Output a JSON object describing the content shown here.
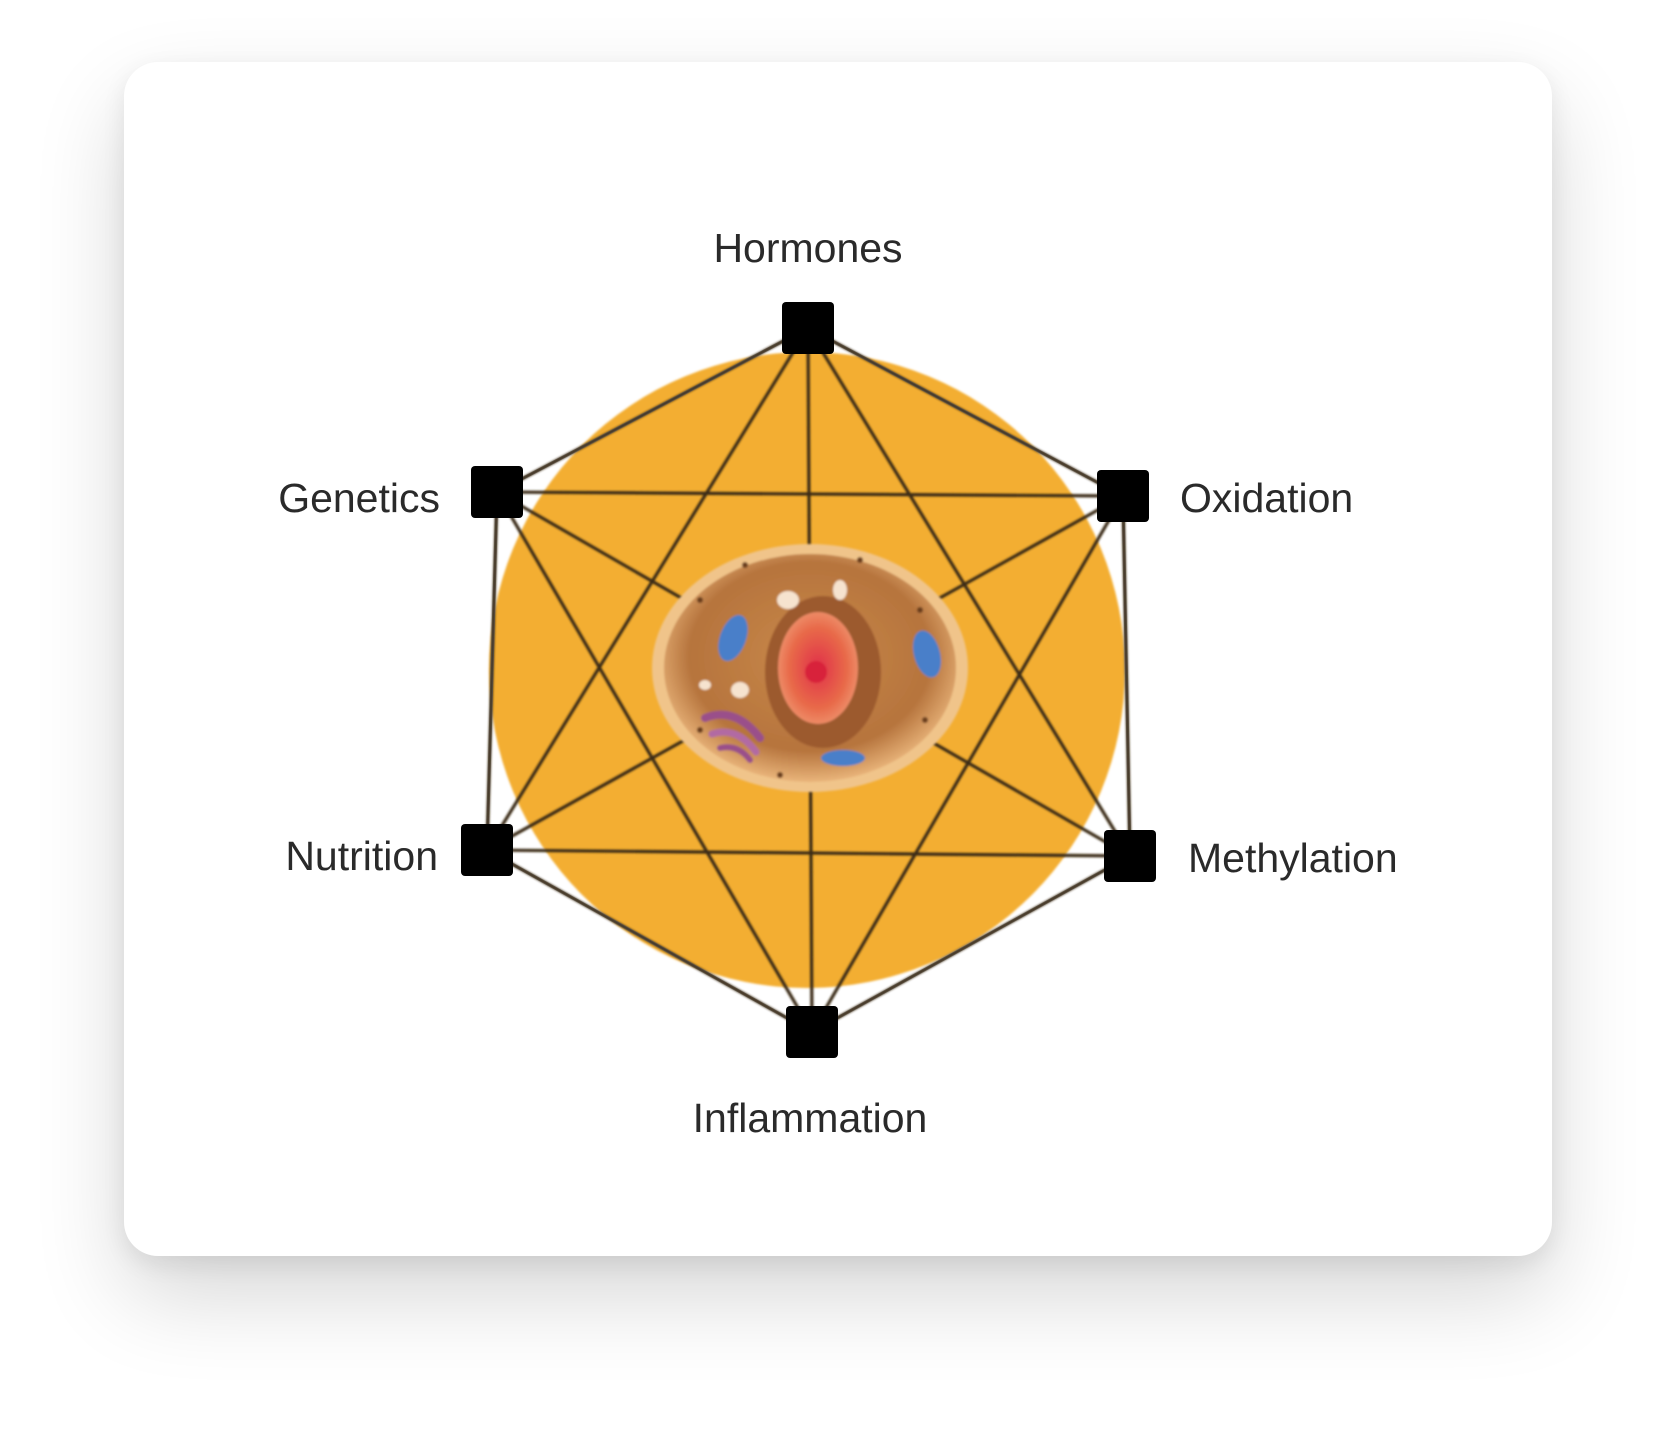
{
  "diagram": {
    "center_image": "animal-cell-illustration",
    "nodes": [
      {
        "id": "hormones",
        "label": "Hormones"
      },
      {
        "id": "oxidation",
        "label": "Oxidation"
      },
      {
        "id": "methylation",
        "label": "Methylation"
      },
      {
        "id": "inflammation",
        "label": "Inflammation"
      },
      {
        "id": "nutrition",
        "label": "Nutrition"
      },
      {
        "id": "genetics",
        "label": "Genetics"
      }
    ],
    "connections": "all nodes connected to each other",
    "colors": {
      "circle": "#F3AE33",
      "node": "#000000",
      "line": "#3a2c12",
      "outline": "#9a9a9a"
    }
  }
}
